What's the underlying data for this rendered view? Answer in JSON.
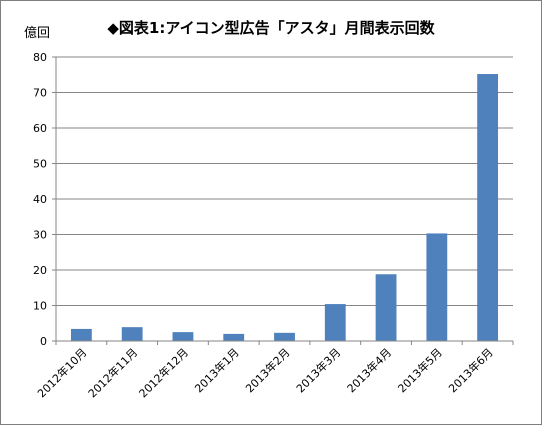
{
  "unit_label": "億回",
  "chart_data": {
    "type": "bar",
    "title": "◆図表1:アイコン型広告「アスタ」月間表示回数",
    "xlabel": "",
    "ylabel": "億回",
    "categories": [
      "2012年10月",
      "2012年11月",
      "2012年12月",
      "2013年1月",
      "2013年2月",
      "2013年3月",
      "2013年4月",
      "2013年5月",
      "2013年6月"
    ],
    "values": [
      3.4,
      3.9,
      2.5,
      2.0,
      2.3,
      10.4,
      18.8,
      30.3,
      75.2
    ],
    "ylim": [
      0,
      80
    ],
    "yticks": [
      0,
      10,
      20,
      30,
      40,
      50,
      60,
      70,
      80
    ],
    "grid": true,
    "legend": "none",
    "bar_color": "#4f81bd"
  }
}
